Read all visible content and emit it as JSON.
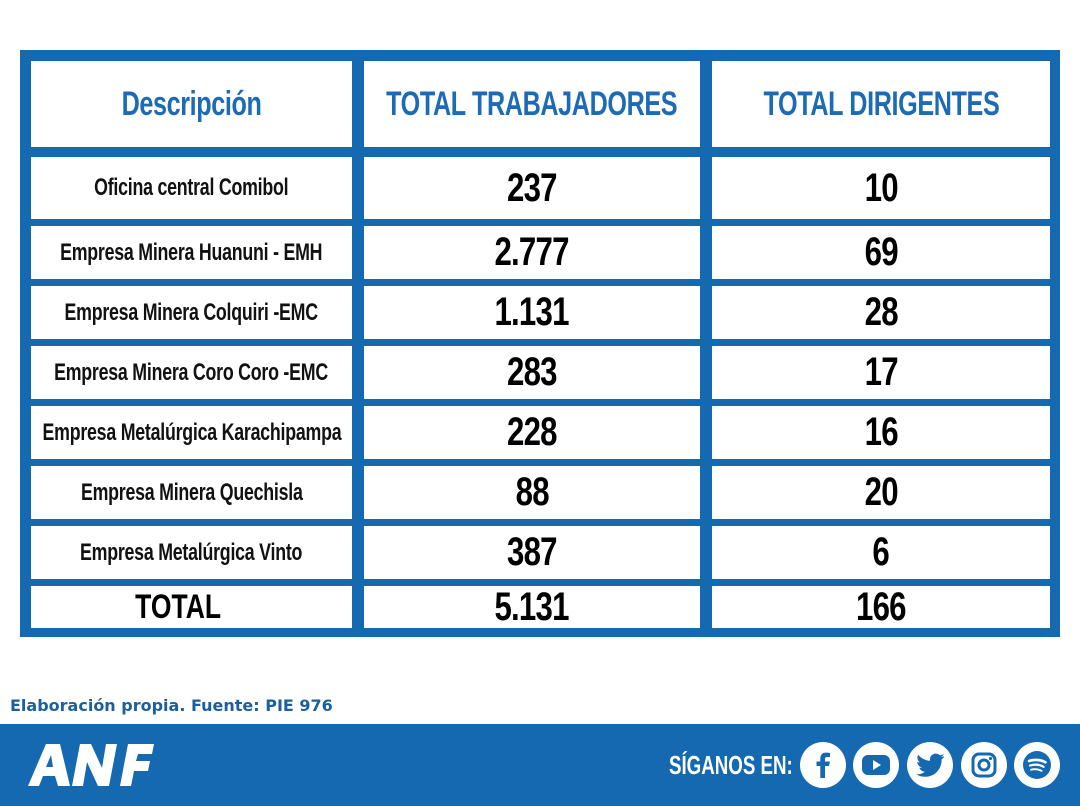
{
  "table": {
    "headers": {
      "description": "Descripción",
      "workers": "TOTAL TRABAJADORES",
      "leaders": "TOTAL DIRIGENTES"
    },
    "rows": [
      {
        "name": "Oficina central Comibol",
        "workers": "237",
        "leaders": "10"
      },
      {
        "name": "Empresa Minera Huanuni - EMH",
        "workers": "2.777",
        "leaders": "69"
      },
      {
        "name": "Empresa Minera Colquiri -EMC",
        "workers": "1.131",
        "leaders": "28"
      },
      {
        "name": "Empresa Minera Coro Coro -EMC",
        "workers": "283",
        "leaders": "17"
      },
      {
        "name": "Empresa Metalúrgica Karachipampa",
        "workers": "228",
        "leaders": "16"
      },
      {
        "name": "Empresa Minera Quechisla",
        "workers": "88",
        "leaders": "20"
      },
      {
        "name": "Empresa Metalúrgica Vinto",
        "workers": "387",
        "leaders": "6"
      }
    ],
    "total": {
      "label": "TOTAL",
      "workers": "5.131",
      "leaders": "166"
    }
  },
  "source_note": "Elaboración propia. Fuente: PIE 976",
  "footer": {
    "logo_text": "ANF",
    "follow_label": "SÍGANOS EN:",
    "social_icons": [
      "facebook-icon",
      "youtube-icon",
      "twitter-icon",
      "instagram-icon",
      "spotify-icon"
    ]
  },
  "colors": {
    "brand_blue": "#1469b0",
    "header_text": "#1d6bb5",
    "background": "#ffffff"
  }
}
